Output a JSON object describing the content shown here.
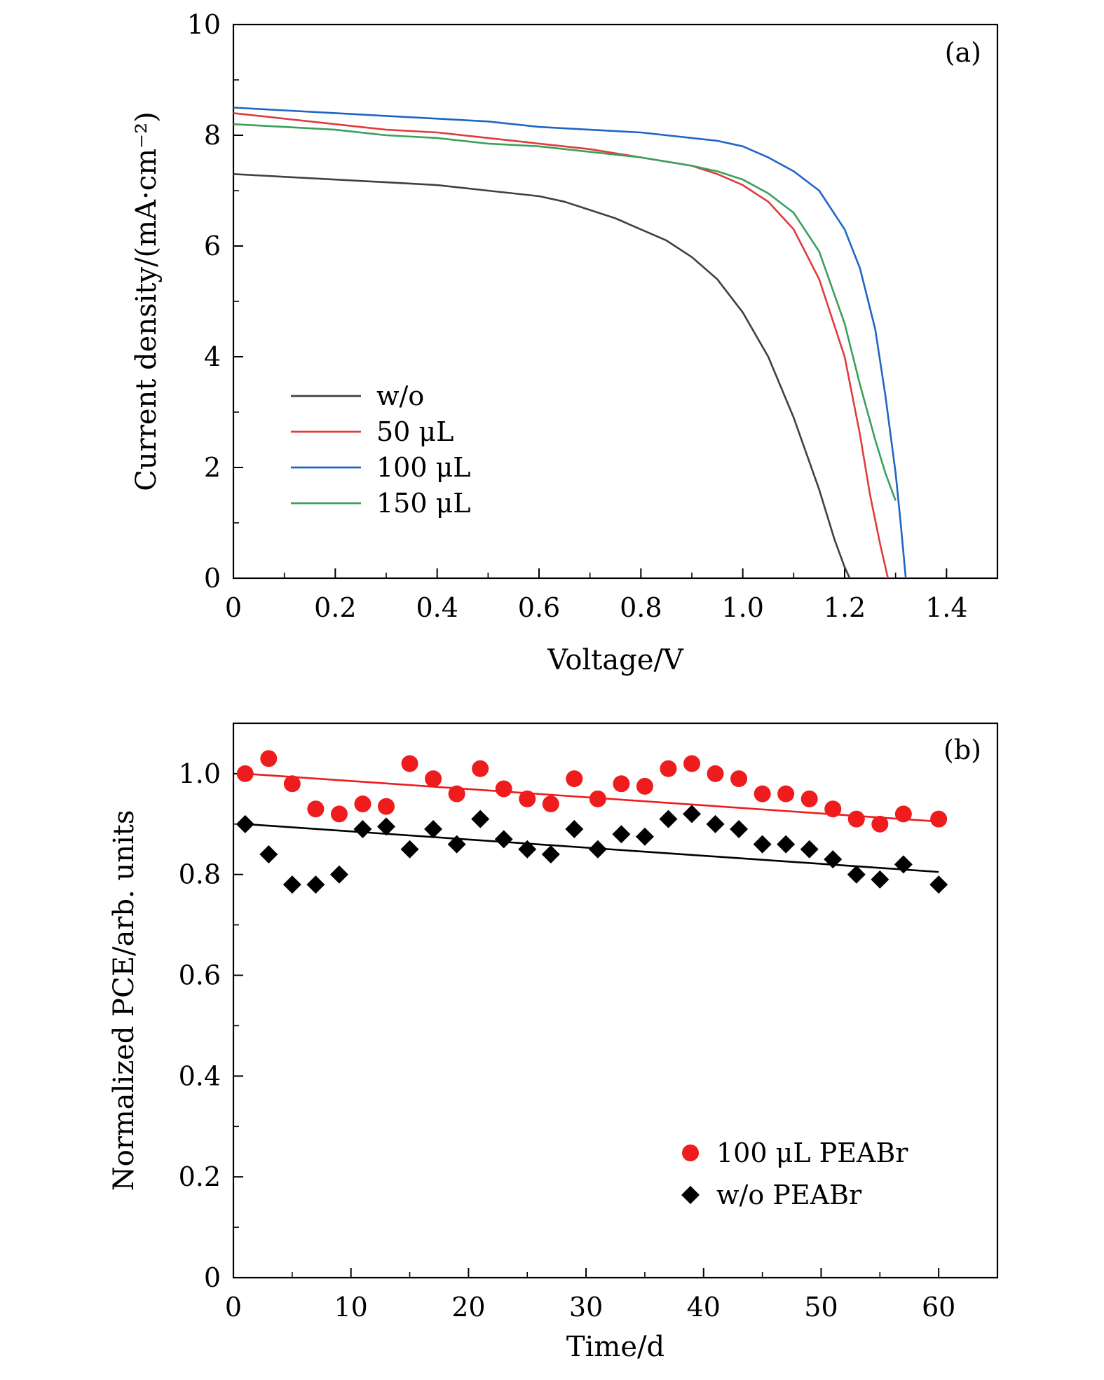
{
  "chart_data": [
    {
      "id": "a",
      "type": "line",
      "panel_label": "(a)",
      "xlabel": "Voltage/V",
      "ylabel": "Current density/(mA·cm⁻²)",
      "xlim": [
        0,
        1.5
      ],
      "ylim": [
        0,
        10
      ],
      "xticks": [
        0,
        0.2,
        0.4,
        0.6,
        0.8,
        1.0,
        1.2,
        1.4
      ],
      "xtick_labels": [
        "0",
        "0.2",
        "0.4",
        "0.6",
        "0.8",
        "1.0",
        "1.2",
        "1.4"
      ],
      "yticks": [
        0,
        2,
        4,
        6,
        8,
        10
      ],
      "ytick_labels": [
        "0",
        "2",
        "4",
        "6",
        "8",
        "10"
      ],
      "legend_position": "lower-left",
      "series": [
        {
          "name": "w/o",
          "color": "#404040",
          "x": [
            0,
            0.1,
            0.2,
            0.3,
            0.4,
            0.5,
            0.6,
            0.65,
            0.7,
            0.75,
            0.8,
            0.85,
            0.9,
            0.95,
            1.0,
            1.05,
            1.1,
            1.15,
            1.18,
            1.2,
            1.21
          ],
          "y": [
            7.3,
            7.25,
            7.2,
            7.15,
            7.1,
            7.0,
            6.9,
            6.8,
            6.65,
            6.5,
            6.3,
            6.1,
            5.8,
            5.4,
            4.8,
            4.0,
            2.9,
            1.6,
            0.7,
            0.2,
            0
          ]
        },
        {
          "name": "50 μL",
          "color": "#e03c3c",
          "x": [
            0,
            0.1,
            0.2,
            0.3,
            0.4,
            0.5,
            0.6,
            0.7,
            0.8,
            0.9,
            0.95,
            1.0,
            1.05,
            1.1,
            1.15,
            1.2,
            1.23,
            1.25,
            1.27,
            1.285
          ],
          "y": [
            8.4,
            8.3,
            8.2,
            8.1,
            8.05,
            7.95,
            7.85,
            7.75,
            7.6,
            7.45,
            7.3,
            7.1,
            6.8,
            6.3,
            5.4,
            4.0,
            2.6,
            1.5,
            0.6,
            0
          ]
        },
        {
          "name": "100 μL",
          "color": "#1f66c4",
          "x": [
            0,
            0.1,
            0.2,
            0.3,
            0.4,
            0.5,
            0.6,
            0.7,
            0.8,
            0.9,
            0.95,
            1.0,
            1.05,
            1.1,
            1.15,
            1.2,
            1.23,
            1.26,
            1.28,
            1.3,
            1.31,
            1.32
          ],
          "y": [
            8.5,
            8.45,
            8.4,
            8.35,
            8.3,
            8.25,
            8.15,
            8.1,
            8.05,
            7.95,
            7.9,
            7.8,
            7.6,
            7.35,
            7.0,
            6.3,
            5.6,
            4.5,
            3.3,
            1.9,
            1.0,
            0
          ]
        },
        {
          "name": "150 μL",
          "color": "#3aa05a",
          "x": [
            0,
            0.1,
            0.2,
            0.3,
            0.4,
            0.5,
            0.6,
            0.7,
            0.8,
            0.9,
            0.95,
            1.0,
            1.05,
            1.1,
            1.15,
            1.2,
            1.23,
            1.26,
            1.28,
            1.3
          ],
          "y": [
            8.2,
            8.15,
            8.1,
            8.0,
            7.95,
            7.85,
            7.8,
            7.7,
            7.6,
            7.45,
            7.35,
            7.2,
            6.95,
            6.6,
            5.9,
            4.6,
            3.5,
            2.5,
            1.9,
            1.4
          ]
        }
      ]
    },
    {
      "id": "b",
      "type": "scatter",
      "panel_label": "(b)",
      "xlabel": "Time/d",
      "ylabel": "Normalized PCE/arb. units",
      "xlim": [
        0,
        65
      ],
      "ylim": [
        0,
        1.1
      ],
      "xticks": [
        0,
        10,
        20,
        30,
        40,
        50,
        60
      ],
      "xtick_labels": [
        "0",
        "10",
        "20",
        "30",
        "40",
        "50",
        "60"
      ],
      "yticks": [
        0,
        0.2,
        0.4,
        0.6,
        0.8,
        1.0
      ],
      "ytick_labels": [
        "0",
        "0.2",
        "0.4",
        "0.6",
        "0.8",
        "1.0"
      ],
      "legend_position": "lower-right",
      "series": [
        {
          "name": "100 μL PEABr",
          "marker": "circle",
          "color": "#ee1c1c",
          "x": [
            1,
            3,
            5,
            7,
            9,
            11,
            13,
            15,
            17,
            19,
            21,
            23,
            25,
            27,
            29,
            31,
            33,
            35,
            37,
            39,
            41,
            43,
            45,
            47,
            49,
            51,
            53,
            55,
            57,
            60
          ],
          "y": [
            1.0,
            1.03,
            0.98,
            0.93,
            0.92,
            0.94,
            0.935,
            1.02,
            0.99,
            0.96,
            1.01,
            0.97,
            0.95,
            0.94,
            0.99,
            0.95,
            0.98,
            0.975,
            1.01,
            1.02,
            1.0,
            0.99,
            0.96,
            0.96,
            0.95,
            0.93,
            0.91,
            0.9,
            0.92,
            0.91
          ],
          "fit": {
            "x": [
              1,
              60
            ],
            "y": [
              1.0,
              0.905
            ]
          }
        },
        {
          "name": "w/o PEABr",
          "marker": "diamond",
          "color": "#000000",
          "x": [
            1,
            3,
            5,
            7,
            9,
            11,
            13,
            15,
            17,
            19,
            21,
            23,
            25,
            27,
            29,
            31,
            33,
            35,
            37,
            39,
            41,
            43,
            45,
            47,
            49,
            51,
            53,
            55,
            57,
            60
          ],
          "y": [
            0.9,
            0.84,
            0.78,
            0.78,
            0.8,
            0.89,
            0.895,
            0.85,
            0.89,
            0.86,
            0.91,
            0.87,
            0.85,
            0.84,
            0.89,
            0.85,
            0.88,
            0.875,
            0.91,
            0.92,
            0.9,
            0.89,
            0.86,
            0.86,
            0.85,
            0.83,
            0.8,
            0.79,
            0.82,
            0.78
          ],
          "fit": {
            "x": [
              1,
              60
            ],
            "y": [
              0.9,
              0.805
            ]
          }
        }
      ]
    }
  ]
}
